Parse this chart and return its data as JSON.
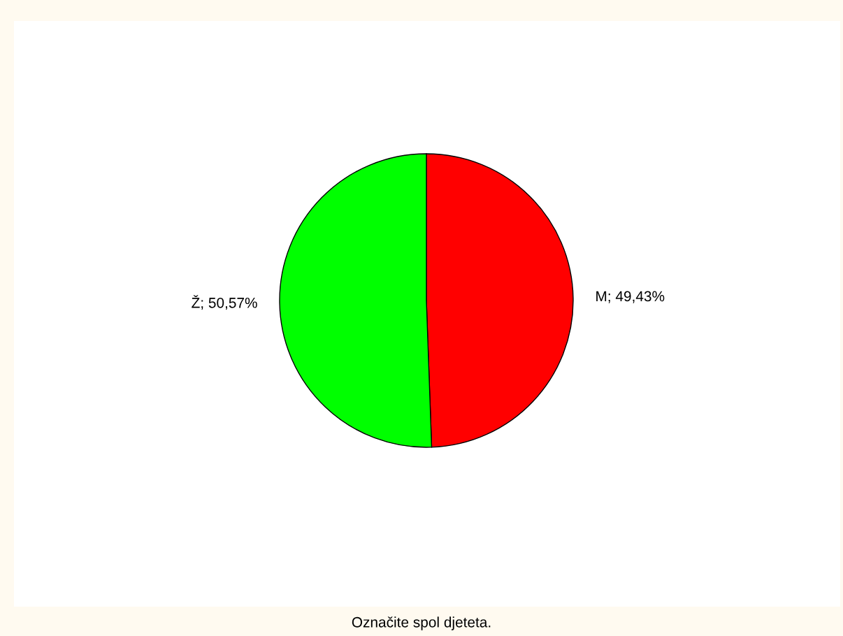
{
  "chart_data": {
    "type": "pie",
    "title": "Označite spol djeteta.",
    "categories": [
      "M; 49,43%",
      "Ž; 50,57%"
    ],
    "values": [
      49.43,
      50.57
    ],
    "colors": [
      "#ff0000",
      "#00ff00"
    ],
    "legend": false
  }
}
